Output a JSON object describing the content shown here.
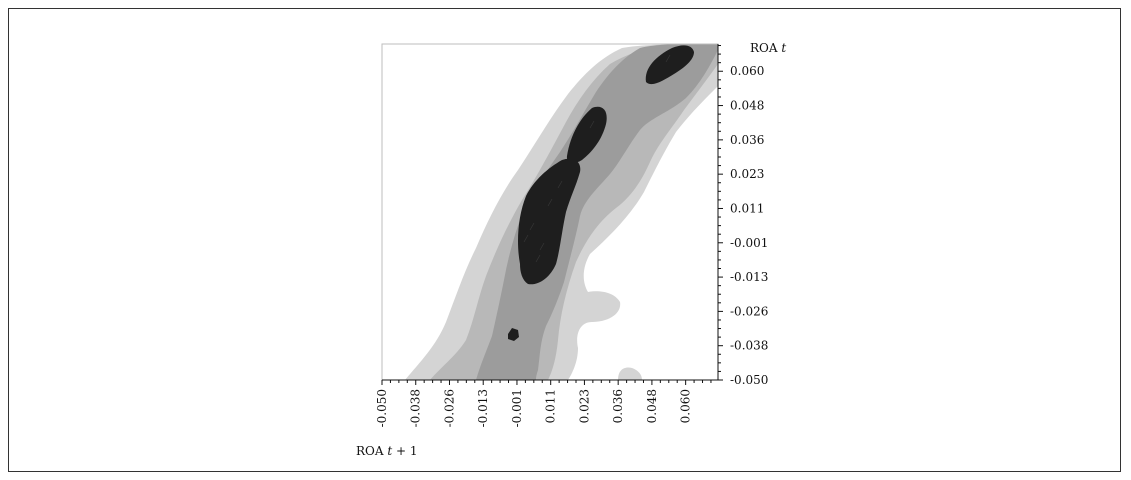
{
  "chart_data": {
    "type": "contour",
    "xlabel": {
      "base": "ROA ",
      "var": "t",
      "suffix": " + 1"
    },
    "ylabel": {
      "base": "ROA ",
      "var": "t"
    },
    "x_ticks": [
      "-0.050",
      "-0.038",
      "-0.026",
      "-0.013",
      "-0.001",
      "0.011",
      "0.023",
      "0.036",
      "0.048",
      "0.060"
    ],
    "y_ticks": [
      "-0.050",
      "-0.038",
      "-0.026",
      "-0.013",
      "-0.001",
      "0.011",
      "0.023",
      "0.036",
      "0.048",
      "0.060"
    ],
    "xlim": [
      -0.05,
      0.071
    ],
    "ylim": [
      -0.05,
      0.069
    ],
    "density_levels": [
      {
        "level": 1,
        "color": "#d4d4d4"
      },
      {
        "level": 2,
        "color": "#b8b8b8"
      },
      {
        "level": 3,
        "color": "#9c9c9c"
      },
      {
        "level": 4,
        "color": "#1e1e1e"
      }
    ],
    "grid": false
  }
}
